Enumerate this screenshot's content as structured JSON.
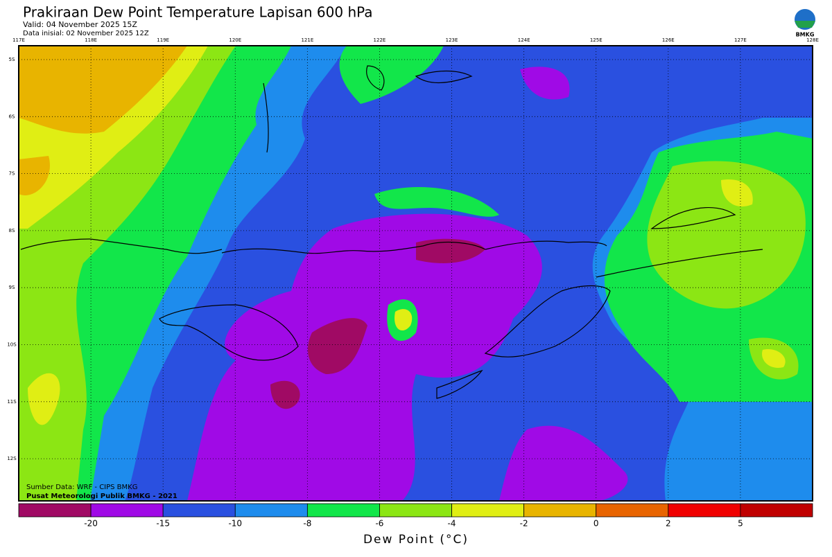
{
  "header": {
    "title": "Prakiraan Dew Point Temperature Lapisan 600 hPa",
    "valid": "Valid: 04 November 2025 15Z",
    "init": "Data inisial: 02 November 2025 12Z"
  },
  "logo": "BMKG",
  "map": {
    "lon_labels": [
      "117E",
      "118E",
      "119E",
      "120E",
      "121E",
      "122E",
      "123E",
      "124E",
      "125E",
      "126E",
      "127E",
      "128E"
    ],
    "lat_labels": [
      "5S",
      "6S",
      "7S",
      "8S",
      "9S",
      "10S",
      "11S",
      "12S"
    ]
  },
  "credits": [
    "Sumber Data: WRF - CIPS BMKG",
    "Pusat Meteorologi Publik BMKG - 2021"
  ],
  "colorbar": {
    "title": "Dew Point (°C)",
    "colors": [
      "#a00a64",
      "#a00ae6",
      "#2a50e0",
      "#1e8ced",
      "#12e64a",
      "#8ce614",
      "#e0ee14",
      "#e8b400",
      "#e86400",
      "#f00000",
      "#c00000"
    ],
    "labels": [
      "-20",
      "-15",
      "-10",
      "-8",
      "-6",
      "-4",
      "-2",
      "0",
      "2",
      "5"
    ]
  }
}
